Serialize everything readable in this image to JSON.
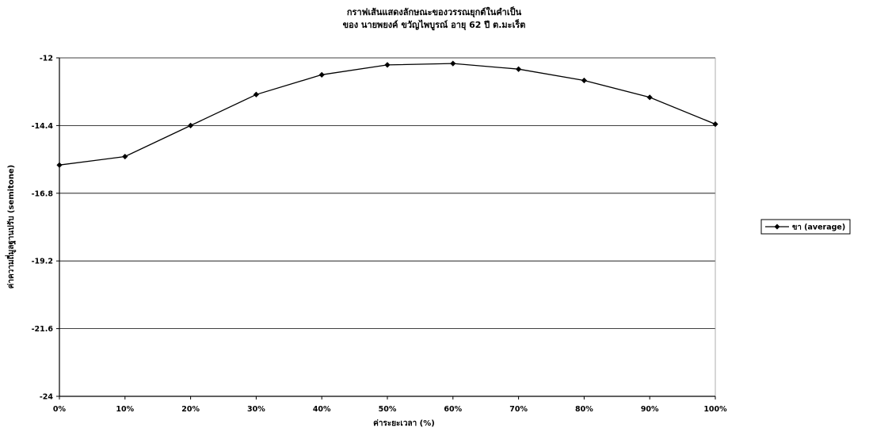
{
  "chart_data": {
    "type": "line",
    "title": "กราฟเส้นแสดงลักษณะของวรรณยุกต์ในคำเป็น",
    "subtitle": "ของ นายพยงค์ ขวัญไพบูรณ์ อายุ 62 ปี ต.มะเร็ต",
    "xlabel": "ค่าระยะเวลา (%)",
    "ylabel": "ค่าความถี่มูลฐานปรับ (semitone)",
    "categories": [
      "0%",
      "10%",
      "20%",
      "30%",
      "40%",
      "50%",
      "60%",
      "70%",
      "80%",
      "90%",
      "100%"
    ],
    "series": [
      {
        "name": "ขา (average)",
        "color": "#000000",
        "values": [
          -15.8,
          -15.5,
          -14.4,
          -13.3,
          -12.6,
          -12.25,
          -12.2,
          -12.4,
          -12.8,
          -13.4,
          -14.35
        ]
      }
    ],
    "ylim": [
      -24,
      -12
    ],
    "yticks": [
      -12,
      -14.4,
      -16.8,
      -19.2,
      -21.6,
      -24
    ],
    "ytick_labels": [
      "-12",
      "-14.4",
      "-16.8",
      "-19.2",
      "-21.6",
      "-24"
    ],
    "grid": true,
    "legend_position": "right"
  }
}
